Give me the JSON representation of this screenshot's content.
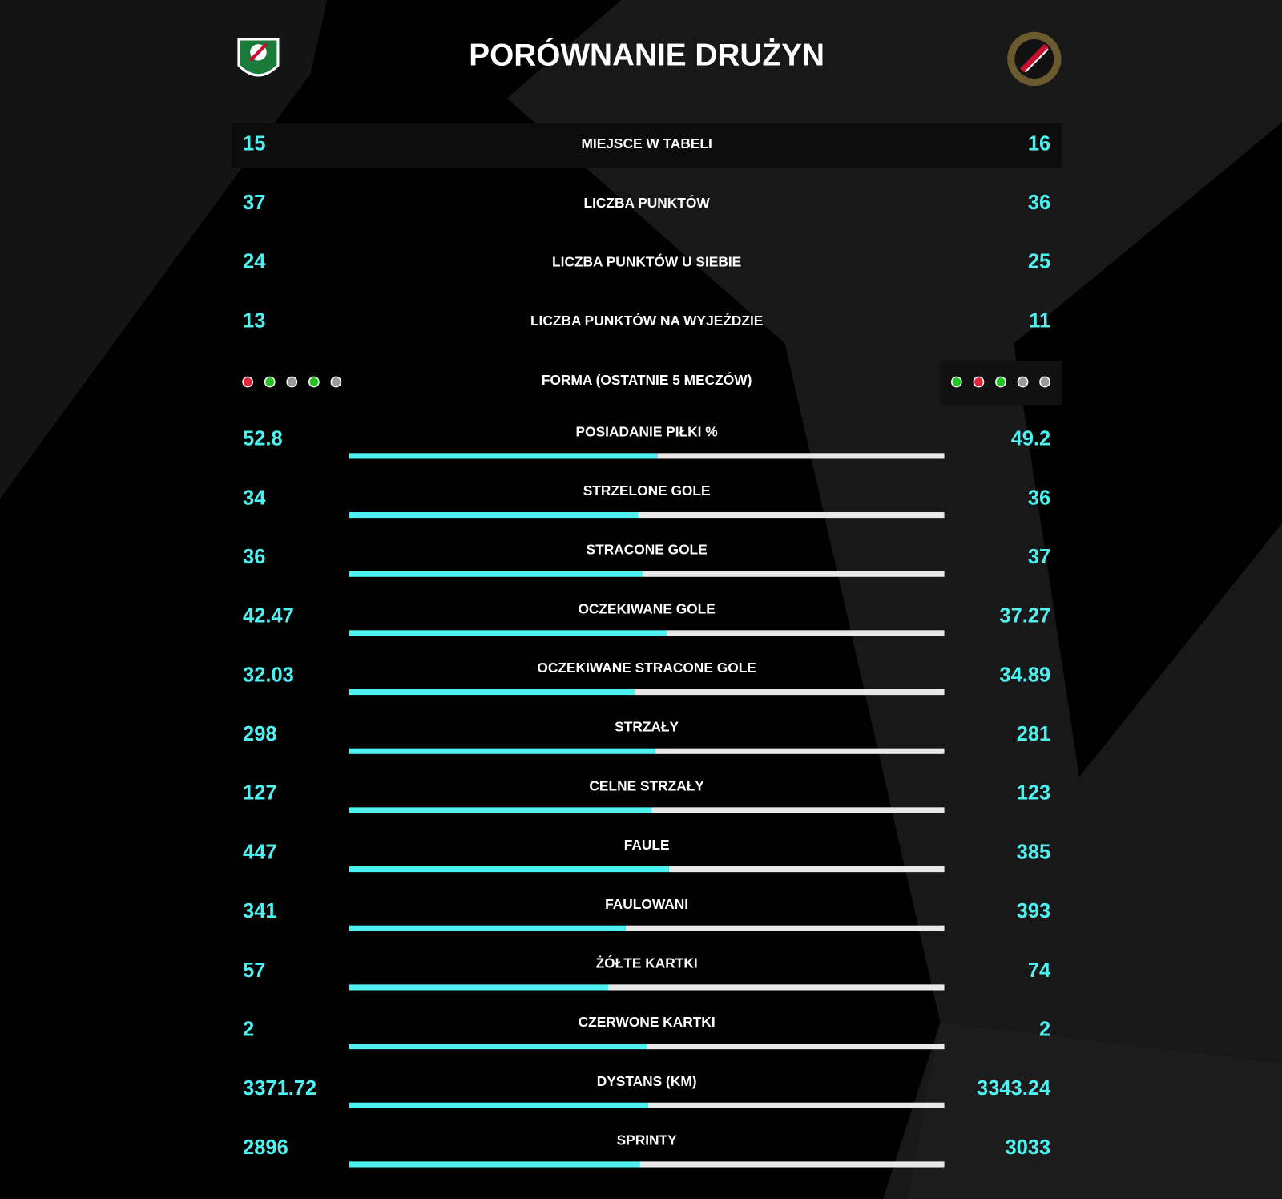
{
  "header": {
    "title": "PORÓWNANIE DRUŻYN"
  },
  "rows": [
    {
      "label": "MIEJSCE W TABELI",
      "left": 15,
      "right": 16
    },
    {
      "label": "LICZBA PUNKTÓW",
      "left": 37,
      "right": 36
    },
    {
      "label": "LICZBA PUNKTÓW U SIEBIE",
      "left": 24,
      "right": 25
    },
    {
      "label": "LICZBA PUNKTÓW NA WYJEŹDZIE",
      "left": 13,
      "right": 11
    }
  ],
  "form": {
    "label": "FORMA (OSTATNIE 5 MECZÓW)",
    "left": [
      "#e0263a",
      "#22c322",
      "#9a9a9a",
      "#22c322",
      "#9a9a9a"
    ],
    "right": [
      "#22c322",
      "#e0263a",
      "#22c322",
      "#9a9a9a",
      "#9a9a9a"
    ]
  },
  "bars": [
    {
      "label": "POSIADANIE PIŁKI %",
      "left": 52.8,
      "right": 49.2
    },
    {
      "label": "STRZELONE GOLE",
      "left": 34,
      "right": 36
    },
    {
      "label": "STRACONE GOLE",
      "left": 36,
      "right": 37
    },
    {
      "label": "OCZEKIWANE GOLE",
      "left": 42.47,
      "right": 37.27
    },
    {
      "label": "OCZEKIWANE STRACONE GOLE",
      "left": 32.03,
      "right": 34.89
    },
    {
      "label": "STRZAŁY",
      "left": 298,
      "right": 281
    },
    {
      "label": "CELNE STRZAŁY",
      "left": 127,
      "right": 123
    },
    {
      "label": "FAULE",
      "left": 447,
      "right": 385
    },
    {
      "label": "FAULOWANI",
      "left": 341,
      "right": 393
    },
    {
      "label": "ŻÓŁTE KARTKI",
      "left": 57,
      "right": 74
    },
    {
      "label": "CZERWONE KARTKI",
      "left": 2,
      "right": 2
    },
    {
      "label": "DYSTANS (KM)",
      "left": 3371.72,
      "right": 3343.24
    },
    {
      "label": "SPRINTY",
      "left": 2896,
      "right": 3033
    }
  ],
  "bar_colors": {
    "left": "#4ff0f0",
    "right": "#e8e8e8"
  }
}
